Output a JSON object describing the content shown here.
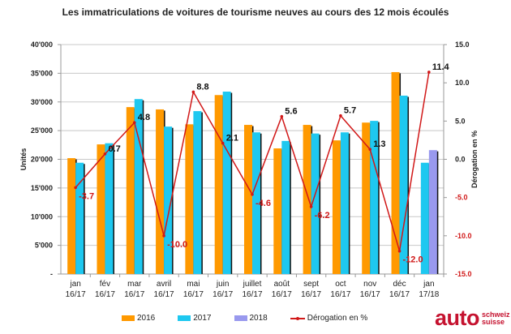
{
  "chart_data": {
    "type": "bar",
    "title": "Les immatriculations de voitures de tourisme neuves au cours des 12 mois écoulés",
    "ylabel": "Unités",
    "y2label": "Dérogation en %",
    "ylim": [
      0,
      40000
    ],
    "y2lim": [
      -15,
      15
    ],
    "grid": true,
    "legend_position": "bottom",
    "y_ticks": [
      "-",
      "5'000",
      "10'000",
      "15'000",
      "20'000",
      "25'000",
      "30'000",
      "35'000",
      "40'000"
    ],
    "y2_ticks": [
      "-15.0",
      "-10.0",
      "-5.0",
      "0.0",
      "5.0",
      "10.0",
      "15.0"
    ],
    "categories": [
      [
        "jan",
        "16/17"
      ],
      [
        "fév",
        "16/17"
      ],
      [
        "mar",
        "16/17"
      ],
      [
        "avril",
        "16/17"
      ],
      [
        "mai",
        "16/17"
      ],
      [
        "juin",
        "16/17"
      ],
      [
        "juillet",
        "16/17"
      ],
      [
        "août",
        "16/17"
      ],
      [
        "sept",
        "16/17"
      ],
      [
        "oct",
        "16/17"
      ],
      [
        "nov",
        "16/17"
      ],
      [
        "déc",
        "16/17"
      ],
      [
        "jan",
        "17/18"
      ]
    ],
    "series": [
      {
        "name": "2016",
        "type": "bar",
        "color": "#ff9900",
        "values": [
          20200,
          22600,
          29100,
          28700,
          26100,
          31200,
          26000,
          21900,
          26000,
          23300,
          26400,
          35200,
          null
        ]
      },
      {
        "name": "2017",
        "type": "bar",
        "color": "#1ec8f0",
        "values": [
          19400,
          22800,
          30500,
          25700,
          28400,
          31800,
          24700,
          23200,
          24500,
          24700,
          26700,
          31100,
          19400
        ]
      },
      {
        "name": "2018",
        "type": "bar",
        "color": "#9999ee",
        "values": [
          null,
          null,
          null,
          null,
          null,
          null,
          null,
          null,
          null,
          null,
          null,
          null,
          21600
        ]
      },
      {
        "name": "Dérogation en %",
        "type": "line",
        "axis": "right",
        "color": "#d11818",
        "values": [
          -3.7,
          0.7,
          4.8,
          -10.0,
          8.8,
          2.1,
          -4.6,
          5.6,
          -6.2,
          5.7,
          1.3,
          -12.0,
          11.4
        ],
        "labels": [
          "-3.7",
          "0.7",
          "4.8",
          "-10.0",
          "8.8",
          "2.1",
          "-4.6",
          "5.6",
          "-6.2",
          "5.7",
          "1.3",
          "-12.0",
          "11.4"
        ]
      }
    ]
  },
  "legend": {
    "items": [
      {
        "label": "2016",
        "color": "#ff9900"
      },
      {
        "label": "2017",
        "color": "#1ec8f0"
      },
      {
        "label": "2018",
        "color": "#9999ee"
      },
      {
        "label": "Dérogation en %",
        "color": "#d11818"
      }
    ]
  },
  "logo": {
    "main": "auto",
    "line1": "schweiz",
    "line2": "suisse"
  }
}
